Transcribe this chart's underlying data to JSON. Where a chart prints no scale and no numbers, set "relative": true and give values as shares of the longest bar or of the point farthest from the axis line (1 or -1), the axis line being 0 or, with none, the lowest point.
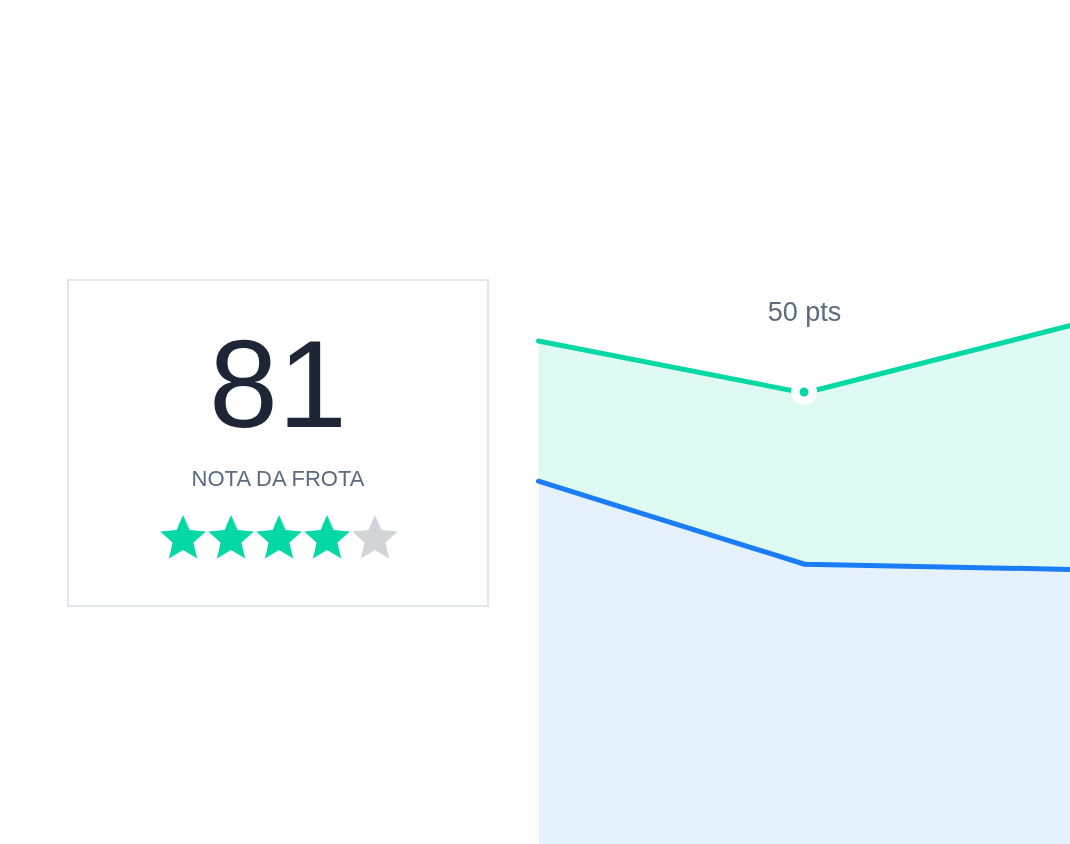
{
  "chart_data": [
    {
      "type": "area",
      "relative": true,
      "categories": [
        null,
        null,
        null
      ],
      "series": [
        {
          "color": "#04d9a5",
          "values": [
            0.97,
            0.87,
            1
          ]
        },
        {
          "color": "#1a7df6",
          "values": [
            0.7,
            0.54,
            0.53
          ]
        }
      ],
      "annotations": [
        {
          "text": "50 pts",
          "y": 0.87
        }
      ]
    },
    {
      "type": "other",
      "title": "81",
      "subtitle": "NOTA DA FROTA",
      "colors": [
        "#04d9a5",
        "#04d9a5",
        "#04d9a5",
        "#04d9a5",
        "#d3d4d8"
      ]
    }
  ]
}
